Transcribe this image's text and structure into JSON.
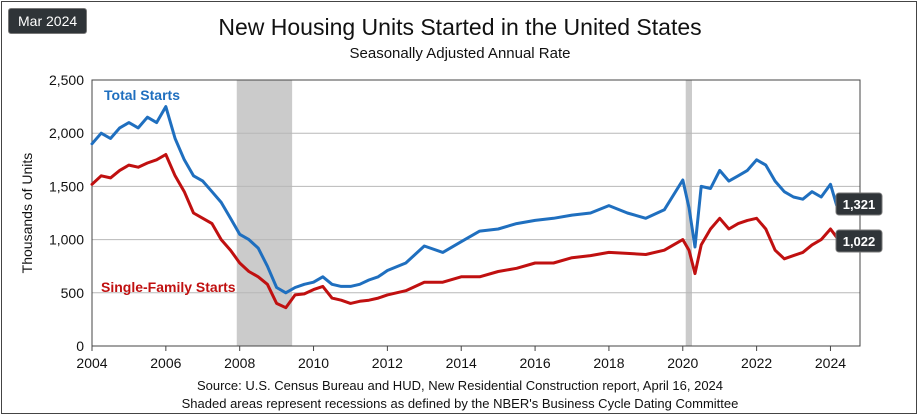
{
  "badge": "Mar 2024",
  "source_line1": "Source:  U.S. Census Bureau and HUD, New Residential Construction report, April 16, 2024",
  "source_line2": "Shaded areas represent recessions as defined by the NBER's Business Cycle Dating Committee",
  "colors": {
    "total": "#1f6fbf",
    "single": "#c01010",
    "recession": "#cbcbcb",
    "value_box": "#2f3438"
  },
  "chart_data": {
    "type": "line",
    "title": "New Housing Units Started in the United States",
    "subtitle": "Seasonally Adjusted Annual Rate",
    "ylabel": "Thousands of Units",
    "xlabel": "",
    "xlim": [
      2004,
      2024.8
    ],
    "ylim": [
      0,
      2500
    ],
    "xticks": [
      "2004",
      "2006",
      "2008",
      "2010",
      "2012",
      "2014",
      "2016",
      "2018",
      "2020",
      "2022",
      "2024"
    ],
    "yticks": [
      "0",
      "500",
      "1,000",
      "1,500",
      "2,000",
      "2,500"
    ],
    "grid": true,
    "recessions": [
      [
        2007.92,
        2009.42
      ],
      [
        2020.08,
        2020.25
      ]
    ],
    "series": [
      {
        "name": "Total Starts",
        "end_label": "1,321",
        "x": [
          2004.0,
          2004.25,
          2004.5,
          2004.75,
          2005.0,
          2005.25,
          2005.5,
          2005.75,
          2006.0,
          2006.25,
          2006.5,
          2006.75,
          2007.0,
          2007.25,
          2007.5,
          2007.75,
          2008.0,
          2008.25,
          2008.5,
          2008.75,
          2009.0,
          2009.25,
          2009.5,
          2009.75,
          2010.0,
          2010.25,
          2010.5,
          2010.75,
          2011.0,
          2011.25,
          2011.5,
          2011.75,
          2012.0,
          2012.5,
          2013.0,
          2013.5,
          2014.0,
          2014.5,
          2015.0,
          2015.5,
          2016.0,
          2016.5,
          2017.0,
          2017.5,
          2018.0,
          2018.5,
          2019.0,
          2019.5,
          2020.0,
          2020.17,
          2020.33,
          2020.5,
          2020.75,
          2021.0,
          2021.25,
          2021.5,
          2021.75,
          2022.0,
          2022.25,
          2022.5,
          2022.75,
          2023.0,
          2023.25,
          2023.5,
          2023.75,
          2024.0,
          2024.17
        ],
        "values": [
          1900,
          2000,
          1950,
          2050,
          2100,
          2050,
          2150,
          2100,
          2250,
          1950,
          1750,
          1600,
          1550,
          1450,
          1350,
          1200,
          1050,
          1000,
          920,
          750,
          550,
          500,
          550,
          580,
          600,
          650,
          580,
          560,
          560,
          580,
          620,
          650,
          710,
          780,
          940,
          880,
          980,
          1080,
          1100,
          1150,
          1180,
          1200,
          1230,
          1250,
          1320,
          1250,
          1200,
          1280,
          1560,
          1300,
          930,
          1500,
          1480,
          1650,
          1550,
          1600,
          1650,
          1750,
          1700,
          1550,
          1450,
          1400,
          1380,
          1450,
          1400,
          1520,
          1321
        ]
      },
      {
        "name": "Single-Family Starts",
        "end_label": "1,022",
        "x": [
          2004.0,
          2004.25,
          2004.5,
          2004.75,
          2005.0,
          2005.25,
          2005.5,
          2005.75,
          2006.0,
          2006.25,
          2006.5,
          2006.75,
          2007.0,
          2007.25,
          2007.5,
          2007.75,
          2008.0,
          2008.25,
          2008.5,
          2008.75,
          2009.0,
          2009.25,
          2009.5,
          2009.75,
          2010.0,
          2010.25,
          2010.5,
          2010.75,
          2011.0,
          2011.25,
          2011.5,
          2011.75,
          2012.0,
          2012.5,
          2013.0,
          2013.5,
          2014.0,
          2014.5,
          2015.0,
          2015.5,
          2016.0,
          2016.5,
          2017.0,
          2017.5,
          2018.0,
          2018.5,
          2019.0,
          2019.5,
          2020.0,
          2020.17,
          2020.33,
          2020.5,
          2020.75,
          2021.0,
          2021.25,
          2021.5,
          2021.75,
          2022.0,
          2022.25,
          2022.5,
          2022.75,
          2023.0,
          2023.25,
          2023.5,
          2023.75,
          2024.0,
          2024.17
        ],
        "values": [
          1520,
          1600,
          1580,
          1650,
          1700,
          1680,
          1720,
          1750,
          1800,
          1600,
          1450,
          1250,
          1200,
          1150,
          1000,
          900,
          780,
          700,
          650,
          580,
          400,
          360,
          480,
          490,
          530,
          560,
          450,
          430,
          400,
          420,
          430,
          450,
          480,
          520,
          600,
          600,
          650,
          650,
          700,
          730,
          780,
          780,
          830,
          850,
          880,
          870,
          860,
          900,
          1000,
          900,
          680,
          950,
          1100,
          1200,
          1100,
          1150,
          1180,
          1200,
          1100,
          900,
          820,
          850,
          880,
          950,
          1000,
          1100,
          1022
        ]
      }
    ],
    "annotations": [
      "Total Starts",
      "Single-Family Starts"
    ]
  }
}
